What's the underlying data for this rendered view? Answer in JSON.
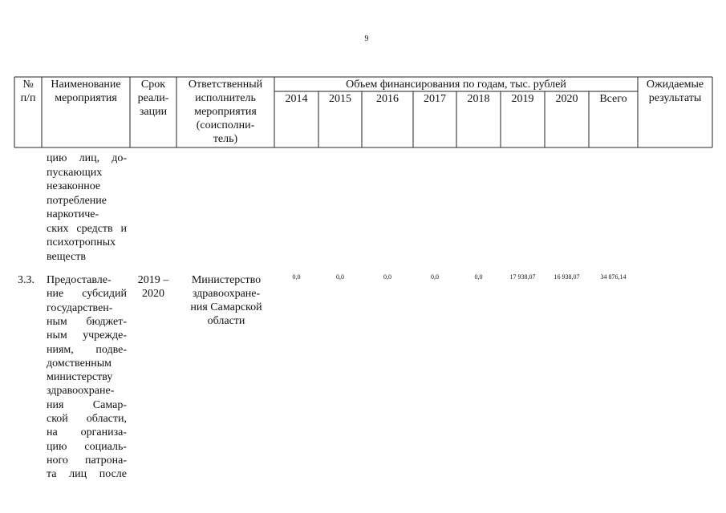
{
  "page_number": "9",
  "table": {
    "header": {
      "number": [
        "№",
        "п/п"
      ],
      "name": [
        "Наименование",
        "мероприятия"
      ],
      "term": [
        "Срок",
        "реали-",
        "зации"
      ],
      "executor": [
        "Ответственный",
        "исполнитель",
        "мероприятия",
        "(соисполни-",
        "тель)"
      ],
      "funding": "Объем финансирования по годам, тыс. рублей",
      "years": [
        "2014",
        "2015",
        "2016",
        "2017",
        "2018",
        "2019",
        "2020",
        "Всего"
      ],
      "results": [
        "Ожидаемые",
        "результаты"
      ]
    },
    "rows": [
      {
        "name": [
          "цию лиц, до-",
          "пускающих",
          "незаконное",
          "потребление",
          "наркотиче-",
          "ских средств и",
          "психотропных",
          "веществ"
        ]
      },
      {
        "number": "3.3.",
        "name": [
          "Предоставле-",
          "ние субсидий",
          "государствен-",
          "ным бюджет-",
          "ным учрежде-",
          "ниям, подве-",
          "домственным",
          "министерству",
          "здравоохране-",
          "ния Самар-",
          "ской области,",
          "на организа-",
          "цию социаль-",
          "ного патрона-",
          "та лиц после"
        ],
        "term": [
          "2019 –",
          "2020"
        ],
        "executor": [
          "Министерство",
          "здравоохране-",
          "ния Самарской",
          "области"
        ],
        "amounts": [
          "0,0",
          "0,0",
          "0,0",
          "0,0",
          "0,0",
          "17 938,07",
          "16 938,07",
          "34 876,14"
        ]
      }
    ]
  }
}
